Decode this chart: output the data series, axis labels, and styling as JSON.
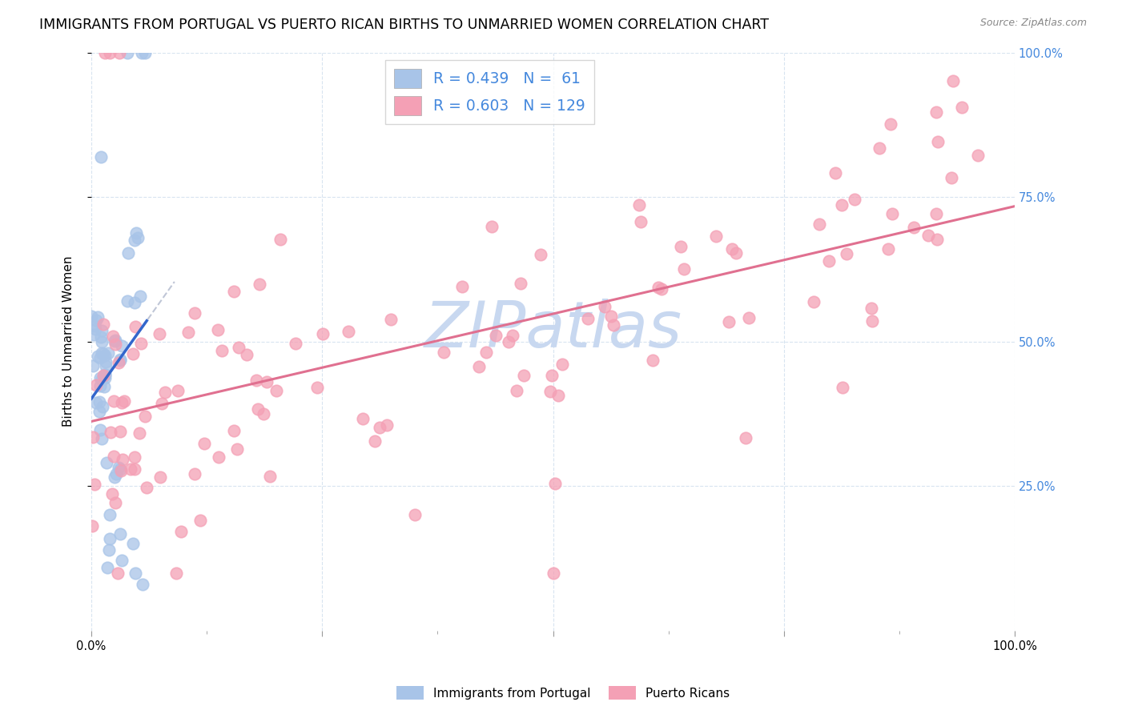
{
  "title": "IMMIGRANTS FROM PORTUGAL VS PUERTO RICAN BIRTHS TO UNMARRIED WOMEN CORRELATION CHART",
  "source": "Source: ZipAtlas.com",
  "ylabel": "Births to Unmarried Women",
  "legend_entry1": {
    "label": "Immigrants from Portugal",
    "R": 0.439,
    "N": 61,
    "color": "#a8c4e8"
  },
  "legend_entry2": {
    "label": "Puerto Ricans",
    "R": 0.603,
    "N": 129,
    "color": "#f4a0b5"
  },
  "blue_line_color": "#3366cc",
  "pink_line_color": "#e07090",
  "blue_dot_color": "#a8c4e8",
  "pink_dot_color": "#f4a0b5",
  "gray_dash_color": "#b0b8cc",
  "grid_color": "#d8e4f0",
  "background_color": "#ffffff",
  "watermark_color": "#c8d8f0",
  "right_tick_color": "#4488dd"
}
